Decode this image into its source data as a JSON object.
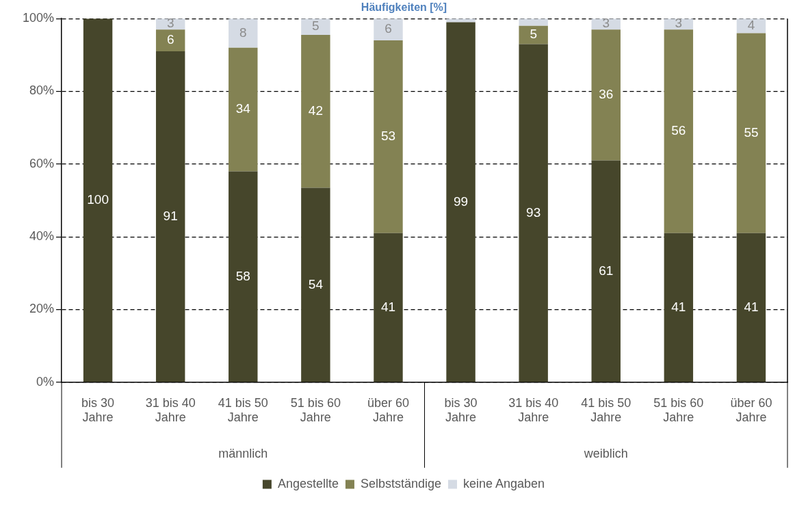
{
  "chart_data": {
    "type": "bar",
    "stacked": true,
    "title": "Häufigkeiten [%]",
    "categories": [
      "bis 30 Jahre",
      "31 bis 40 Jahre",
      "41 bis 50 Jahre",
      "51 bis 60 Jahre",
      "über 60 Jahre",
      "bis 30 Jahre",
      "31 bis 40 Jahre",
      "41 bis 50 Jahre",
      "51 bis 60 Jahre",
      "über 60 Jahre"
    ],
    "series": [
      {
        "name": "Angestellte",
        "color": "#46462b",
        "values": [
          100,
          91,
          58,
          53.5,
          41,
          99,
          93,
          61,
          41,
          41
        ],
        "value_labels": [
          "100",
          "91",
          "58",
          "54",
          "41",
          "99",
          "93",
          "61",
          "41",
          "41"
        ]
      },
      {
        "name": "Selbstständige",
        "color": "#838253",
        "values": [
          0,
          6,
          34,
          42,
          53,
          0,
          5,
          36,
          56,
          55
        ],
        "value_labels": [
          null,
          "6",
          "34",
          "42",
          "53",
          null,
          "5",
          "36",
          "56",
          "55"
        ]
      },
      {
        "name": "keine Angaben",
        "color": "#d5dbe4",
        "values": [
          0,
          3,
          8,
          4.5,
          6,
          1,
          2,
          3,
          3,
          4
        ],
        "value_labels": [
          null,
          "3",
          "8",
          "5",
          "6",
          null,
          null,
          "3",
          "3",
          "4"
        ]
      }
    ],
    "annotations": [
      "männlich",
      "weiblich"
    ],
    "ylim": [
      0,
      100
    ],
    "yticks": [
      {
        "value": 0,
        "label": "0%"
      },
      {
        "value": 20,
        "label": "20%"
      },
      {
        "value": 40,
        "label": "40%"
      },
      {
        "value": 60,
        "label": "60%"
      },
      {
        "value": 80,
        "label": "80%"
      },
      {
        "value": 100,
        "label": "100%"
      }
    ],
    "grid": "y",
    "legend": "bottom"
  }
}
